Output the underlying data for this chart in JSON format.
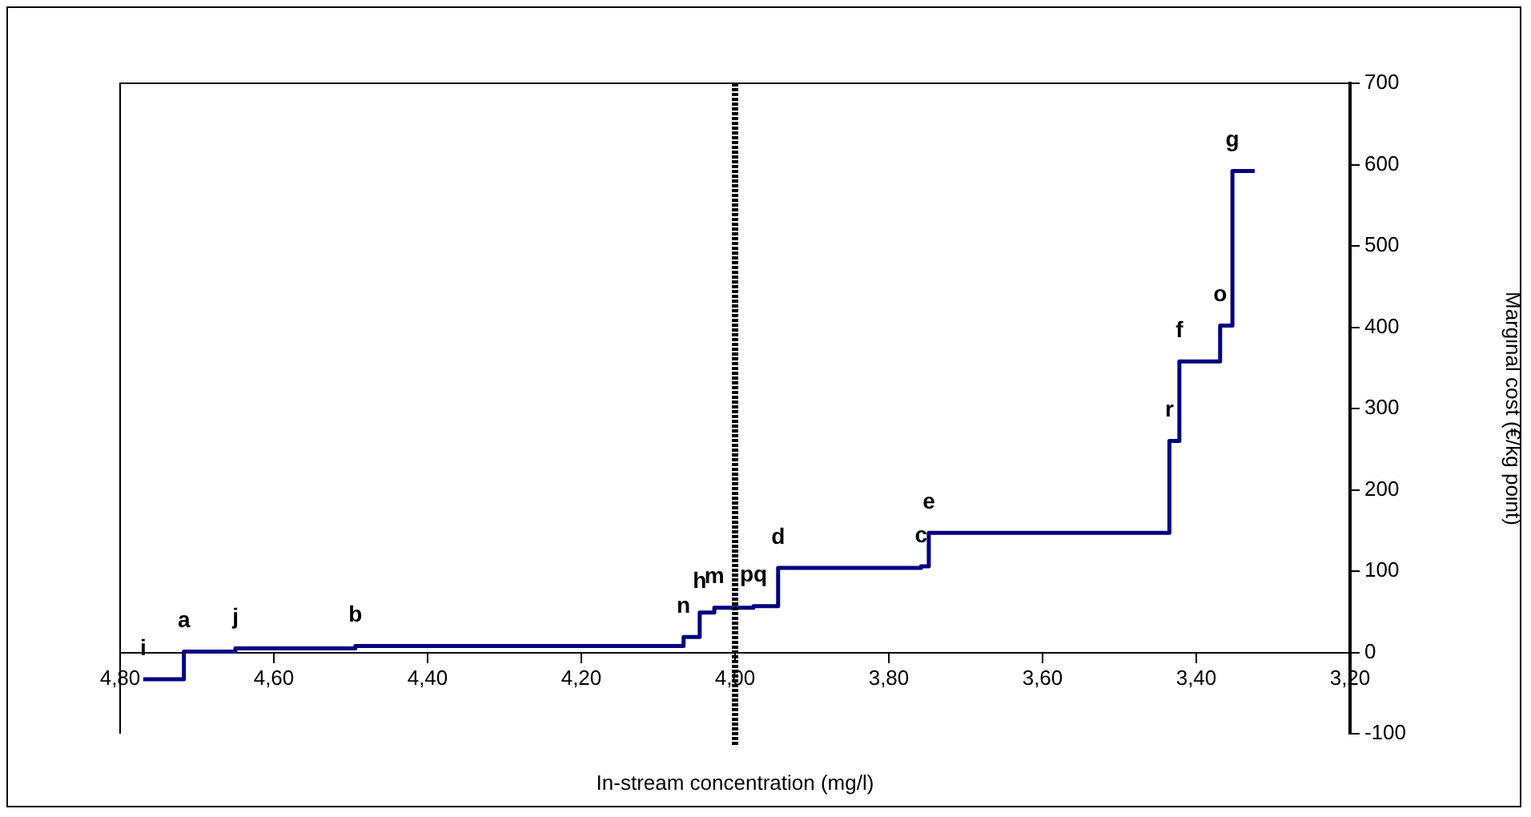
{
  "chart_data": {
    "type": "step",
    "xlabel": "In-stream concentration (mg/l)",
    "ylabel": "Marginal cost (€/kg point)",
    "x": [
      4.77,
      4.717,
      4.65,
      4.494,
      4.067,
      4.046,
      4.027,
      3.976,
      3.944,
      3.758,
      3.748,
      3.435,
      3.422,
      3.369,
      3.353,
      3.324
    ],
    "values": [
      -33,
      1,
      5,
      8,
      19,
      49,
      55,
      57,
      104,
      106,
      147,
      260,
      358,
      402,
      592,
      592
    ],
    "color": "#000080",
    "marker": "none",
    "xlim": [
      4.8,
      3.2
    ],
    "xticks": [
      {
        "value": 4.8,
        "label": "4,80"
      },
      {
        "value": 4.6,
        "label": "4,60"
      },
      {
        "value": 4.4,
        "label": "4,40"
      },
      {
        "value": 4.2,
        "label": "4,20"
      },
      {
        "value": 4.0,
        "label": "4,00"
      },
      {
        "value": 3.8,
        "label": "3,80"
      },
      {
        "value": 3.6,
        "label": "3,60"
      },
      {
        "value": 3.4,
        "label": "3,40"
      },
      {
        "value": 3.2,
        "label": "3,20"
      }
    ],
    "ylim": [
      -100,
      700
    ],
    "yticks": [
      -100,
      0,
      100,
      200,
      300,
      400,
      500,
      600,
      700
    ],
    "ref_lines": [
      {
        "axis": "x",
        "value": 4.0,
        "color": "#000000",
        "line_style": "dotted"
      }
    ],
    "annotations": [
      {
        "text": "i",
        "x": 4.77,
        "y": -33
      },
      {
        "text": "a",
        "x": 4.717,
        "y": 1
      },
      {
        "text": "j",
        "x": 4.65,
        "y": 5
      },
      {
        "text": "b",
        "x": 4.494,
        "y": 8
      },
      {
        "text": "n",
        "x": 4.067,
        "y": 19
      },
      {
        "text": "h",
        "x": 4.046,
        "y": 49
      },
      {
        "text": "m",
        "x": 4.027,
        "y": 55
      },
      {
        "text": "pq",
        "x": 3.976,
        "y": 57
      },
      {
        "text": "d",
        "x": 3.944,
        "y": 104
      },
      {
        "text": "c",
        "x": 3.758,
        "y": 106
      },
      {
        "text": "e",
        "x": 3.748,
        "y": 147
      },
      {
        "text": "r",
        "x": 3.435,
        "y": 260
      },
      {
        "text": "f",
        "x": 3.422,
        "y": 358
      },
      {
        "text": "o",
        "x": 3.369,
        "y": 402
      },
      {
        "text": "g",
        "x": 3.353,
        "y": 592
      }
    ]
  }
}
